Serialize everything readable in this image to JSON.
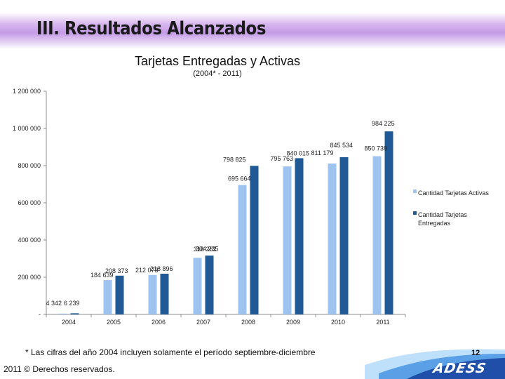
{
  "slide": {
    "title": "III. Resultados  Alcanzados",
    "page_number": "12",
    "logo_text": "ADESS",
    "footnote": "* Las cifras del año 2004 incluyen solamente el período septiembre-diciembre",
    "copyright": "2011 © Derechos reservados."
  },
  "colors": {
    "activas": "#9dc3ee",
    "entregadas": "#1f5a96",
    "band_dark": "#1f4fa8",
    "band_mid": "#5aa0e6",
    "band_light": "#bfe0fb"
  },
  "chart_data": {
    "type": "bar",
    "title": "Tarjetas Entregadas y Activas",
    "subtitle": "(2004* - 2011)",
    "categories": [
      "2004",
      "2005",
      "2006",
      "2007",
      "2008",
      "2009",
      "2010",
      "2011"
    ],
    "ylim": [
      0,
      1200000
    ],
    "yticks": [
      0,
      200000,
      400000,
      600000,
      800000,
      1000000,
      1200000
    ],
    "ytick_labels": [
      "-",
      "200 000",
      "400 000",
      "600 000",
      "800 000",
      "1 000 000",
      "1 200 000"
    ],
    "legend_position": "right",
    "series": [
      {
        "name": "Cantidad Tarjetas Activas",
        "color_key": "activas",
        "values": [
          4342,
          184639,
          212073,
          304235,
          695664,
          795763,
          811179,
          850739
        ],
        "labels": [
          "4 342",
          "184 639",
          "212 073",
          "304 235",
          "695 664",
          "795 763",
          "811 179",
          "850 739"
        ]
      },
      {
        "name": "Cantidad Tarjetas Entregadas",
        "color_key": "entregadas",
        "values": [
          6239,
          208373,
          218896,
          316262,
          798825,
          840015,
          845534,
          984225
        ],
        "labels": [
          "6 239",
          "208 373",
          "218 896",
          "316 262",
          "798 825",
          "840 015",
          "845 534",
          "984 225"
        ]
      }
    ]
  }
}
